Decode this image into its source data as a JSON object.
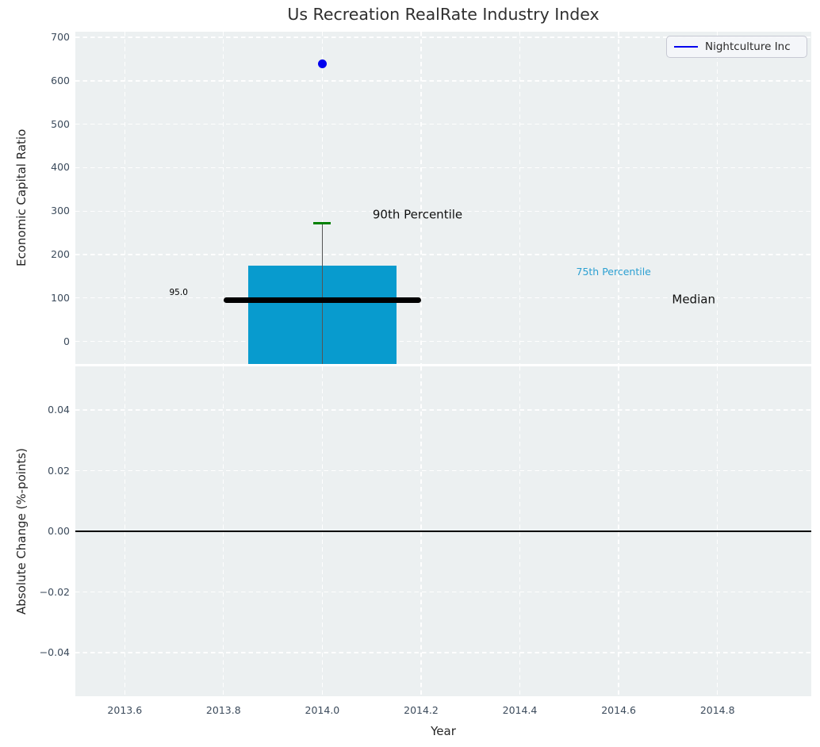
{
  "title": "Us Recreation RealRate Industry Index",
  "legend": {
    "label": "Nightculture Inc",
    "line_color": "#0000ee",
    "position": "upper right"
  },
  "colors": {
    "plot_background": "#ecf0f1",
    "grid": "#ffffff",
    "box_fill": "#089bce",
    "median_line": "#000000",
    "whisker_line": "#555555",
    "p90_cap": "#008000",
    "company_point": "#0000ee",
    "zero_line": "#000000",
    "tick_label": "#3c4b5c",
    "axis_label": "#262626",
    "annotation_75th": "#2ca0d2"
  },
  "chart_data": [
    {
      "type": "boxplot",
      "subplot": "top",
      "ylabel": "Economic Capital Ratio",
      "xlabel": "",
      "xlim": [
        2013.5,
        2014.99
      ],
      "ylim": [
        -52,
        713
      ],
      "xticks": [
        2013.6,
        2013.8,
        2014.0,
        2014.2,
        2014.4,
        2014.6,
        2014.8
      ],
      "xtick_labels": [],
      "yticks": [
        0,
        100,
        200,
        300,
        400,
        500,
        600,
        700
      ],
      "ytick_labels": [
        "0",
        "100",
        "200",
        "300",
        "400",
        "500",
        "600",
        "700"
      ],
      "grid": true,
      "box": {
        "x_center": 2014.0,
        "x_left": 2013.85,
        "x_right": 2014.15,
        "p75": 174,
        "p25": null,
        "note": "lower edge of box extends below visible axis (clipped)"
      },
      "median": {
        "value": 95,
        "x_left": 2013.8,
        "x_right": 2014.2,
        "label": "95.0"
      },
      "p90_whisker": {
        "value": 272,
        "cap_x_left": 2013.981,
        "cap_x_right": 2014.017
      },
      "company_point": {
        "series": "Nightculture Inc",
        "x": 2014.0,
        "y": 640
      },
      "annotations": [
        {
          "text": "95.0",
          "x": 2013.709,
          "y": 113,
          "color": "#000000",
          "size": 10.5,
          "align": "center"
        },
        {
          "text": "90th Percentile",
          "x": 2014.102,
          "y": 292,
          "color": "#111111",
          "size": 15,
          "align": "left"
        },
        {
          "text": "75th Percentile",
          "x": 2014.514,
          "y": 160,
          "color": "#2ca0d2",
          "size": 12.5,
          "align": "left"
        },
        {
          "text": "Median",
          "x": 2014.708,
          "y": 96,
          "color": "#111111",
          "size": 15,
          "align": "left"
        }
      ]
    },
    {
      "type": "line",
      "subplot": "bottom",
      "ylabel": "Absolute Change (%-points)",
      "xlabel": "Year",
      "xlim": [
        2013.5,
        2014.99
      ],
      "ylim": [
        -0.0544,
        0.0544
      ],
      "xticks": [
        2013.6,
        2013.8,
        2014.0,
        2014.2,
        2014.4,
        2014.6,
        2014.8
      ],
      "xtick_labels": [
        "2013.6",
        "2013.8",
        "2014.0",
        "2014.2",
        "2014.4",
        "2014.6",
        "2014.8"
      ],
      "yticks": [
        0.04,
        0.02,
        0.0,
        -0.02,
        -0.04
      ],
      "ytick_labels": [
        "0.04",
        "0.02",
        "0.00",
        "−0.02",
        "−0.04"
      ],
      "grid": true,
      "zero_line": {
        "y": 0.0
      },
      "series": [
        {
          "name": "Absolute change",
          "x": [
            2013.5,
            2014.99
          ],
          "y": [
            0.0,
            0.0
          ]
        }
      ]
    }
  ]
}
